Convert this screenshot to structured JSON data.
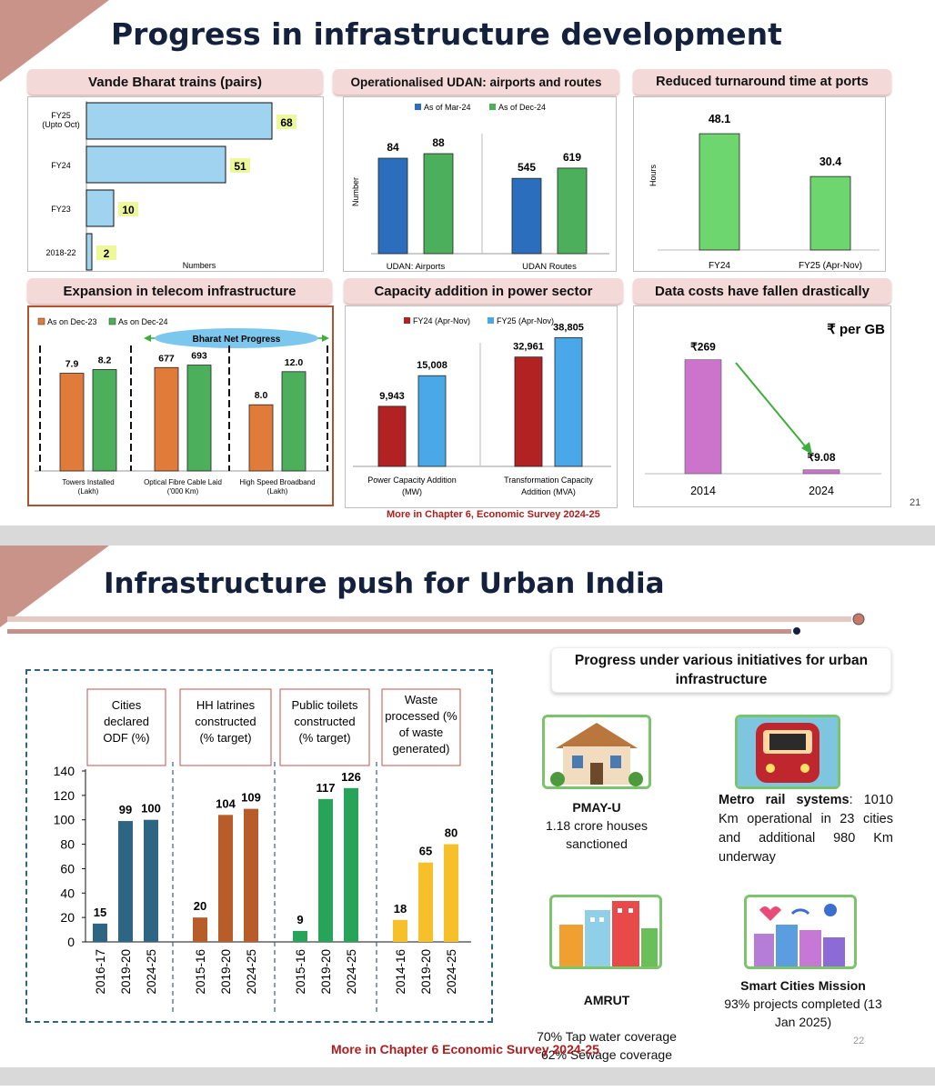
{
  "slide1": {
    "title": "Progress in infrastructure development",
    "page_number": "21",
    "footer": "More in Chapter 6, Economic Survey 2024-25",
    "panels": {
      "vande": {
        "title": "Vande Bharat trains (pairs)"
      },
      "udan": {
        "title": "Operationalised UDAN: airports and routes"
      },
      "ports": {
        "title": "Reduced turnaround time at ports"
      },
      "telecom": {
        "title": "Expansion in telecom infrastructure",
        "banner": "Bharat Net Progress"
      },
      "power": {
        "title": "Capacity addition in power sector"
      },
      "data": {
        "title": "Data costs have fallen drastically",
        "unit": "₹ per GB"
      }
    }
  },
  "slide2": {
    "title": "Infrastructure push for Urban India",
    "page_number": "22",
    "footer": "More in Chapter 6 Economic Survey 2024-25",
    "initiatives_heading": "Progress under various initiatives for urban infrastructure",
    "initiatives": [
      {
        "name": "PMAY-U",
        "desc": "1.18 crore houses sanctioned",
        "icon": "house-icon"
      },
      {
        "name": "Metro rail systems",
        "desc": ": 1010 Km operational in 23 cities and additional 980 Km underway",
        "icon": "metro-train-icon"
      },
      {
        "name": "AMRUT",
        "desc": "70% Tap water coverage\n62% Sewage coverage",
        "icon": "city-buildings-icon"
      },
      {
        "name": "Smart Cities Mission",
        "desc": "93% projects completed (13 Jan 2025)",
        "icon": "smart-city-icon"
      }
    ]
  },
  "colors": {
    "title": "#14213d",
    "pill": "#f4d9d9",
    "accent": "#b01c1c",
    "teal": "#2e6583",
    "brown": "#b85c29",
    "green": "#27a35a",
    "yellow": "#f5c02a"
  },
  "chart_data": [
    {
      "id": "vande",
      "type": "bar",
      "orientation": "horizontal",
      "title": "Vande Bharat trains (pairs)",
      "categories": [
        "FY25\n(Upto Oct)",
        "FY24",
        "FY23",
        "2018-22"
      ],
      "values": [
        68,
        51,
        10,
        2
      ],
      "xlabel": "Numbers",
      "color": "#9fd3ef"
    },
    {
      "id": "udan",
      "type": "bar",
      "title": "Operationalised UDAN: airports and routes",
      "categories": [
        "UDAN: Airports",
        "UDAN Routes"
      ],
      "series": [
        {
          "name": "As of Mar-24",
          "values": [
            84,
            545
          ],
          "color": "#2a6ebd"
        },
        {
          "name": "As of Dec-24",
          "values": [
            88,
            619
          ],
          "color": "#4caf5c"
        }
      ],
      "ylabel": "Number",
      "legend": "top"
    },
    {
      "id": "ports",
      "type": "bar",
      "title": "Reduced turnaround time at ports",
      "categories": [
        "FY24",
        "FY25 (Apr-Nov)"
      ],
      "values": [
        48.1,
        30.4
      ],
      "ylabel": "Hours",
      "color": "#6dd66f"
    },
    {
      "id": "telecom",
      "type": "bar",
      "title": "Expansion in telecom infrastructure",
      "categories": [
        "Towers Installed\n(Lakh)",
        "Optical Fibre Cable Laid\n('000 Km)",
        "High Speed Broadband\n(Lakh)"
      ],
      "series": [
        {
          "name": "As on Dec-23",
          "values": [
            "7.9",
            "677",
            "8.0"
          ],
          "color": "#e07b39"
        },
        {
          "name": "As on Dec-24",
          "values": [
            "8.2",
            "693",
            "12.0"
          ],
          "color": "#4caf5c"
        }
      ],
      "legend": "top-left"
    },
    {
      "id": "power",
      "type": "bar",
      "title": "Capacity addition in power sector",
      "categories": [
        "Power Capacity Addition\n(MW)",
        "Transformation Capacity\nAddition (MVA)"
      ],
      "series": [
        {
          "name": "FY24 (Apr-Nov)",
          "values": [
            "9,943",
            "32,961"
          ],
          "color": "#b22222"
        },
        {
          "name": "FY25 (Apr-Nov)",
          "values": [
            "15,008",
            "38,805"
          ],
          "color": "#4aa8e8"
        }
      ],
      "legend": "top"
    },
    {
      "id": "data",
      "type": "bar",
      "title": "Data costs have fallen drastically",
      "categories": [
        "2014",
        "2024"
      ],
      "values": [
        "₹269",
        "₹9.08"
      ],
      "ylabel": "₹ per GB",
      "color": "#cc73cc"
    },
    {
      "id": "urban",
      "type": "bar",
      "ylim": [
        0,
        140
      ],
      "yticks": [
        "0",
        "20",
        "40",
        "60",
        "80",
        "100",
        "120",
        "140"
      ],
      "groups": [
        {
          "label": "Cities declared ODF (%)",
          "categories": [
            "2016-17",
            "2019-20",
            "2024-25"
          ],
          "values": [
            15,
            99,
            100
          ],
          "color": "#2e6583"
        },
        {
          "label": "HH latrines constructed (% target)",
          "categories": [
            "2015-16",
            "2019-20",
            "2024-25"
          ],
          "values": [
            20,
            104,
            109
          ],
          "color": "#b85c29"
        },
        {
          "label": "Public toilets constructed (% target)",
          "categories": [
            "2015-16",
            "2019-20",
            "2024-25"
          ],
          "values": [
            9,
            117,
            126
          ],
          "color": "#27a35a"
        },
        {
          "label": "Waste processed (% of waste generated)",
          "categories": [
            "2014-16",
            "2019-20",
            "2024-25"
          ],
          "values": [
            18,
            65,
            80
          ],
          "color": "#f5c02a"
        }
      ]
    }
  ]
}
